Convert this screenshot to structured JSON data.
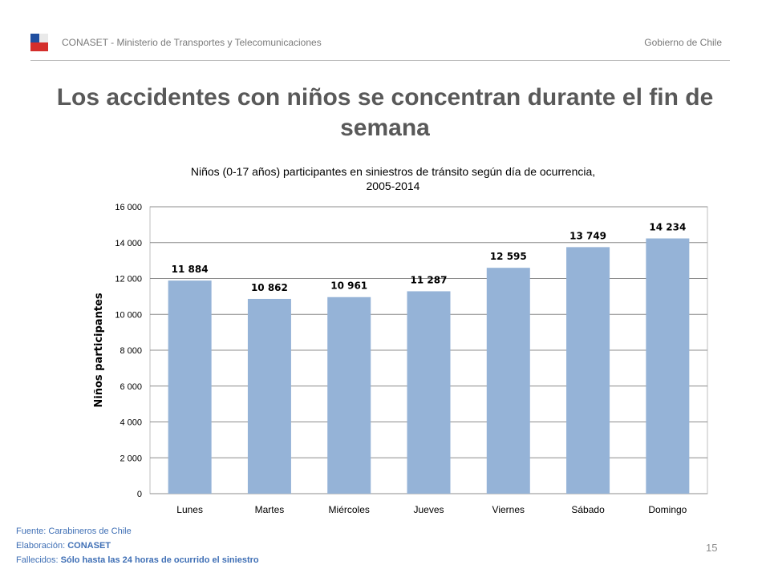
{
  "header": {
    "left_text": "CONASET  - Ministerio de Transportes y Telecomunicaciones",
    "right_text": "Gobierno de Chile"
  },
  "slide": {
    "title": "Los accidentes con niños se concentran durante el fin de semana",
    "page_number": "15"
  },
  "colors": {
    "bar": "#95b3d7",
    "flag_blue": "#1f4fa0",
    "flag_red": "#d42e2b",
    "title": "#595959",
    "footer": "#3f6fb5"
  },
  "chart_data": {
    "type": "bar",
    "title_line1": "Niños (0-17 años) participantes en siniestros de tránsito según día de ocurrencia,",
    "title_line2": "2005-2014",
    "ylabel": "Niños participantes",
    "xlabel": "",
    "categories": [
      "Lunes",
      "Martes",
      "Miércoles",
      "Jueves",
      "Viernes",
      "Sábado",
      "Domingo"
    ],
    "values": [
      11884,
      10862,
      10961,
      11287,
      12595,
      13749,
      14234
    ],
    "value_labels": [
      "11 884",
      "10 862",
      "10 961",
      "11 287",
      "12 595",
      "13 749",
      "14 234"
    ],
    "ylim": [
      0,
      16000
    ],
    "yticks": [
      0,
      2000,
      4000,
      6000,
      8000,
      10000,
      12000,
      14000,
      16000
    ],
    "ytick_labels": [
      "0",
      "2 000",
      "4 000",
      "6 000",
      "8 000",
      "10 000",
      "12 000",
      "14 000",
      "16 000"
    ],
    "grid": true,
    "legend": "none"
  },
  "footer": {
    "source_label": "Fuente:",
    "source_value": "Carabineros de Chile",
    "elab_label": "Elaboración:",
    "elab_value": "CONASET",
    "deaths_label": "Fallecidos:",
    "deaths_value": "Sólo hasta las 24 horas de ocurrido el siniestro"
  }
}
